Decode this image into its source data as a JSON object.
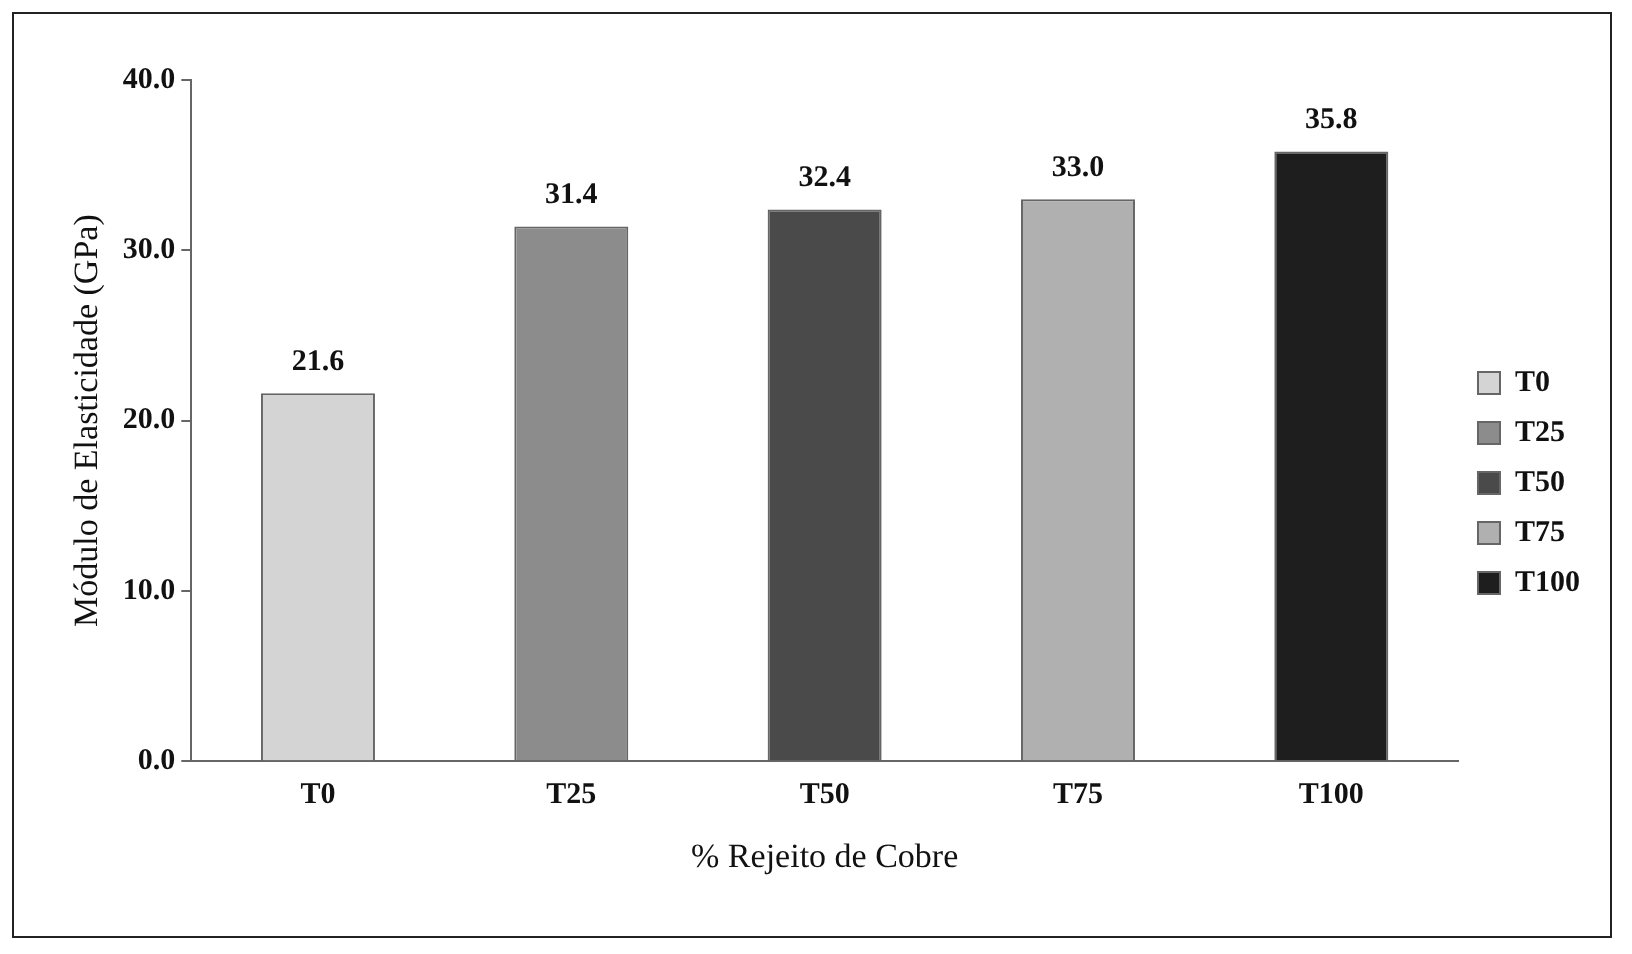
{
  "chart_data": {
    "type": "bar",
    "xlabel": "% Rejeito de Cobre",
    "ylabel": "Módulo de Elasticidade (GPa)",
    "categories": [
      "T0",
      "T25",
      "T50",
      "T75",
      "T100"
    ],
    "series": [
      {
        "name": "T0",
        "color": "#d4d4d4",
        "values": [
          21.6,
          null,
          null,
          null,
          null
        ],
        "value_labels": [
          "21.6",
          null,
          null,
          null,
          null
        ]
      },
      {
        "name": "T25",
        "color": "#8c8c8c",
        "values": [
          null,
          31.4,
          null,
          null,
          null
        ],
        "value_labels": [
          null,
          "31.4",
          null,
          null,
          null
        ]
      },
      {
        "name": "T50",
        "color": "#4a4a4a",
        "values": [
          null,
          null,
          32.4,
          null,
          null
        ],
        "value_labels": [
          null,
          null,
          "32.4",
          null,
          null
        ]
      },
      {
        "name": "T75",
        "color": "#b0b0b0",
        "values": [
          null,
          null,
          null,
          33.0,
          null
        ],
        "value_labels": [
          null,
          null,
          null,
          "33.0",
          null
        ]
      },
      {
        "name": "T100",
        "color": "#1e1e1e",
        "values": [
          null,
          null,
          null,
          null,
          35.8
        ],
        "value_labels": [
          null,
          null,
          null,
          null,
          "35.8"
        ]
      }
    ],
    "ylim": [
      0,
      40
    ],
    "yticks": [
      {
        "value": 0,
        "label": "0.0"
      },
      {
        "value": 10,
        "label": "10.0"
      },
      {
        "value": 20,
        "label": "20.0"
      },
      {
        "value": 30,
        "label": "30.0"
      },
      {
        "value": 40,
        "label": "40.0"
      }
    ],
    "grid": false,
    "legend": "right"
  }
}
